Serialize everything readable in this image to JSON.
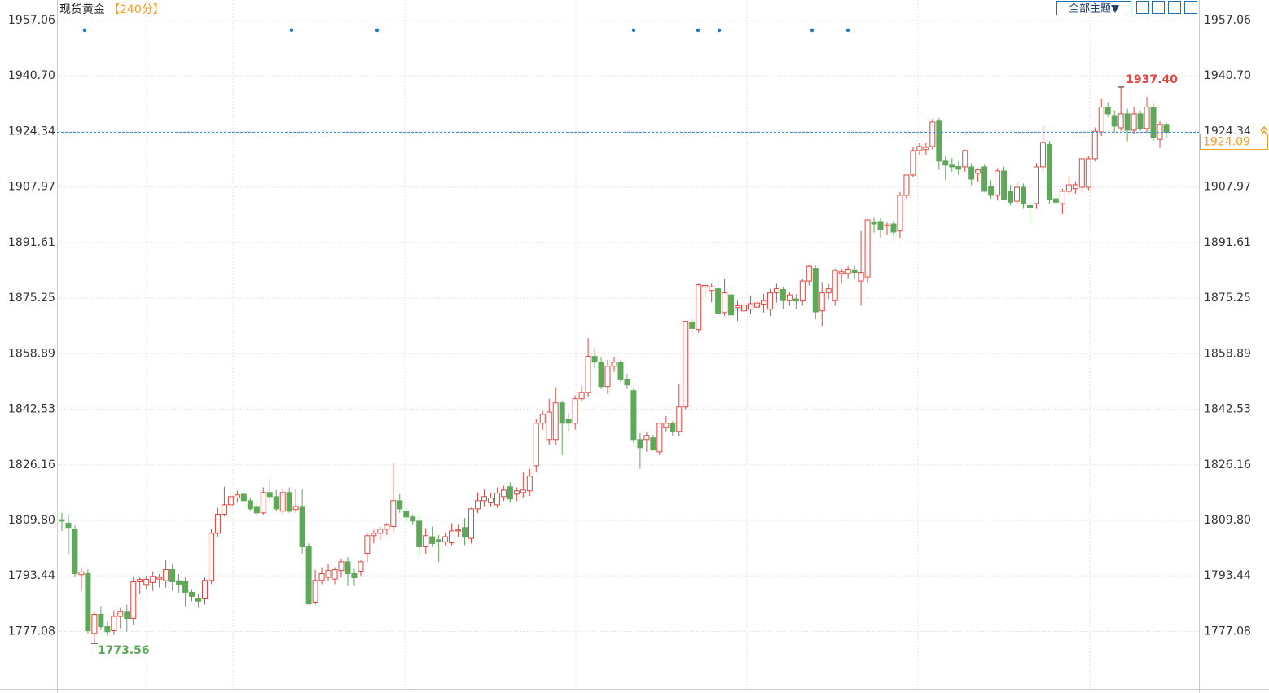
{
  "chart_data": {
    "type": "candlestick",
    "title": "现货黄金",
    "subtitle": "【240分】",
    "toolbar_button": "全部主题▼",
    "up_color": "#e0453f",
    "down_color": "#5ea85a",
    "last_color": "#f39c1f",
    "grid": true,
    "ylim": [
      1760.4,
      1963.05
    ],
    "yticks": [
      1957.06,
      {
        "value": 1940.7,
        "label": "1940.70"
      },
      1924.34,
      1907.97,
      1891.61,
      1875.25,
      1858.89,
      1842.53,
      1826.16,
      {
        "value": 1809.8,
        "label": "1809.80"
      },
      1793.44,
      1777.08
    ],
    "high_label": {
      "value": 1937.4,
      "label": "1937.40"
    },
    "low_label": 1773.56,
    "last_price": 1924.09,
    "open": [
      1810.0,
      1809.0,
      1807.2,
      1793.8,
      1794.1,
      1776.5,
      1782.1,
      1778.5,
      1777.3,
      1781.5,
      1783.0,
      1780.9,
      1791.7,
      1790.9,
      1791.5,
      1792.5,
      1792.0,
      1795.3,
      1792.0,
      1791.7,
      1788.6,
      1786.9,
      1786.9,
      1792.1,
      1806.0,
      1811.6,
      1814.4,
      1816.4,
      1817.5,
      1815.6,
      1813.9,
      1812.0,
      1818.0,
      1816.8,
      1812.5,
      1818.0,
      1813.0,
      1813.9,
      1802.0,
      1785.7,
      1792.1,
      1793.0,
      1792.5,
      1795.0,
      1797.6,
      1794.1,
      1794.8,
      1800.1,
      1805.3,
      1806.0,
      1807.2,
      1808.0,
      1815.6,
      1812.5,
      1810.8,
      1809.6,
      1802.0,
      1805.0,
      1804.1,
      1803.5,
      1803.2,
      1806.7,
      1807.7,
      1804.5,
      1813.2,
      1815.6,
      1815.0,
      1814.4,
      1816.8,
      1819.7,
      1817.5,
      1818.0,
      1818.5,
      1825.9,
      1838.4,
      1833.6,
      1833.6,
      1844.4,
      1839.6,
      1838.4,
      1845.6,
      1847.5,
      1858.1,
      1856.4,
      1849.2,
      1855.2,
      1856.4,
      1851.2,
      1848.0,
      1833.6,
      1833.6,
      1834.1,
      1830.0,
      1837.2,
      1838.4,
      1836.0,
      1843.2,
      1868.2,
      1866.0,
      1878.5,
      1877.5,
      1878.0,
      1871.0,
      1876.2,
      1872.5,
      1871.5,
      1872.0,
      1872.6,
      1873.5,
      1872.0,
      1876.8,
      1877.8,
      1874.5,
      1875.0,
      1874.4,
      1880.3,
      1884.0,
      1871.5,
      1876.8,
      1874.5,
      1882.5,
      1882.5,
      1883.6,
      1880.3,
      1881.5,
      1897.5,
      1897.6,
      1896.5,
      1897.1,
      1895.0,
      1905.5,
      1911.5,
      1918.7,
      1919.0,
      1919.9,
      1927.6,
      1915.6,
      1914.4,
      1914.0,
      1913.9,
      1913.9,
      1912.0,
      1913.9,
      1908.0,
      1905.5,
      1912.7,
      1906.7,
      1903.8,
      1907.9,
      1902.5,
      1903.1,
      1913.9,
      1920.5,
      1904.5,
      1903.1,
      1906.7,
      1907.5,
      1907.9,
      1907.9,
      1916.3,
      1924.2,
      1931.5,
      1929.0,
      1925.4,
      1929.5,
      1924.7,
      1929.5,
      1925.2,
      1931.5,
      1922.0,
      1926.4
    ],
    "high": [
      1812.0,
      1811.6,
      1808.4,
      1796.0,
      1795.3,
      1783.0,
      1784.5,
      1780.0,
      1783.3,
      1784.0,
      1785.0,
      1793.3,
      1793.0,
      1793.5,
      1794.8,
      1794.0,
      1798.0,
      1797.0,
      1794.0,
      1793.0,
      1789.5,
      1788.0,
      1793.0,
      1807.2,
      1813.5,
      1819.7,
      1818.0,
      1818.5,
      1818.7,
      1816.5,
      1815.0,
      1819.5,
      1822.0,
      1818.7,
      1819.2,
      1819.5,
      1819.0,
      1819.0,
      1803.0,
      1795.3,
      1796.0,
      1797.0,
      1796.0,
      1798.5,
      1799.0,
      1795.5,
      1798.0,
      1806.0,
      1807.0,
      1808.0,
      1809.0,
      1826.7,
      1817.5,
      1814.0,
      1811.5,
      1811.0,
      1807.5,
      1808.0,
      1805.5,
      1806.0,
      1809.0,
      1808.5,
      1810.5,
      1813.5,
      1818.0,
      1819.0,
      1818.0,
      1819.5,
      1820.0,
      1821.0,
      1819.5,
      1824.0,
      1825.0,
      1839.6,
      1842.0,
      1845.6,
      1849.0,
      1845.0,
      1841.5,
      1846.5,
      1849.5,
      1863.5,
      1860.5,
      1858.0,
      1857.0,
      1858.0,
      1857.0,
      1853.0,
      1849.0,
      1835.5,
      1836.0,
      1835.0,
      1838.5,
      1840.5,
      1839.0,
      1850.0,
      1868.5,
      1869.5,
      1879.5,
      1880.0,
      1879.5,
      1881.0,
      1881.0,
      1878.5,
      1874.5,
      1874.5,
      1876.0,
      1875.0,
      1876.5,
      1878.0,
      1879.5,
      1878.5,
      1877.0,
      1876.5,
      1881.0,
      1885.0,
      1884.8,
      1880.0,
      1879.5,
      1884.0,
      1884.0,
      1884.6,
      1885.0,
      1895.0,
      1898.5,
      1899.0,
      1898.8,
      1897.5,
      1898.0,
      1906.5,
      1911.5,
      1919.9,
      1921.0,
      1921.0,
      1928.0,
      1928.3,
      1917.0,
      1916.5,
      1915.5,
      1919.0,
      1915.0,
      1913.5,
      1914.5,
      1910.0,
      1913.5,
      1914.0,
      1908.5,
      1909.5,
      1909.0,
      1903.5,
      1915.0,
      1926.0,
      1921.5,
      1906.0,
      1907.5,
      1911.0,
      1909.5,
      1916.5,
      1917.0,
      1925.5,
      1934.0,
      1933.0,
      1930.5,
      1937.4,
      1931.0,
      1931.5,
      1930.5,
      1934.5,
      1932.5,
      1927.5,
      1927.0
    ],
    "low": [
      1806.7,
      1800.0,
      1793.3,
      1789.0,
      1776.5,
      1773.56,
      1777.5,
      1775.8,
      1776.1,
      1778.0,
      1777.0,
      1779.0,
      1788.0,
      1789.5,
      1789.0,
      1790.0,
      1790.0,
      1789.0,
      1788.5,
      1784.5,
      1786.0,
      1784.0,
      1785.0,
      1791.0,
      1805.0,
      1811.0,
      1813.5,
      1815.0,
      1815.6,
      1812.5,
      1811.0,
      1811.5,
      1815.5,
      1812.5,
      1811.8,
      1812.0,
      1812.0,
      1800.0,
      1785.0,
      1785.0,
      1791.0,
      1792.0,
      1791.0,
      1793.0,
      1790.5,
      1790.5,
      1793.5,
      1797.5,
      1803.0,
      1804.0,
      1805.5,
      1806.5,
      1812.0,
      1809.5,
      1808.5,
      1799.5,
      1800.0,
      1802.0,
      1797.5,
      1802.5,
      1802.5,
      1805.0,
      1802.5,
      1803.0,
      1812.0,
      1814.0,
      1814.0,
      1813.5,
      1815.5,
      1815.0,
      1815.5,
      1816.5,
      1817.0,
      1824.0,
      1836.5,
      1832.0,
      1832.0,
      1829.0,
      1836.0,
      1836.5,
      1845.0,
      1846.0,
      1854.5,
      1848.5,
      1847.0,
      1853.5,
      1850.5,
      1848.5,
      1832.5,
      1825.0,
      1830.0,
      1830.5,
      1829.0,
      1836.0,
      1834.5,
      1834.5,
      1842.5,
      1864.0,
      1865.0,
      1875.5,
      1874.0,
      1870.0,
      1870.0,
      1870.5,
      1868.5,
      1868.0,
      1870.5,
      1869.0,
      1871.0,
      1870.0,
      1874.0,
      1872.0,
      1873.0,
      1872.0,
      1873.0,
      1879.0,
      1869.0,
      1867.0,
      1875.0,
      1873.0,
      1879.5,
      1881.0,
      1881.0,
      1873.0,
      1880.0,
      1894.5,
      1893.0,
      1894.0,
      1893.5,
      1893.0,
      1904.5,
      1911.0,
      1917.5,
      1917.5,
      1919.0,
      1913.0,
      1910.0,
      1912.5,
      1911.5,
      1912.5,
      1908.5,
      1909.5,
      1906.5,
      1904.5,
      1904.0,
      1904.5,
      1902.5,
      1903.0,
      1901.5,
      1897.5,
      1901.5,
      1912.5,
      1903.0,
      1902.5,
      1900.0,
      1905.5,
      1906.0,
      1906.5,
      1907.0,
      1915.5,
      1923.0,
      1928.5,
      1924.0,
      1924.5,
      1921.5,
      1923.5,
      1924.5,
      1924.0,
      1921.5,
      1919.5,
      1922.5
    ],
    "close": [
      1809.6,
      1807.7,
      1794.1,
      1794.6,
      1777.3,
      1782.1,
      1778.5,
      1777.0,
      1781.5,
      1783.0,
      1780.9,
      1791.7,
      1792.4,
      1792.4,
      1793.3,
      1793.0,
      1795.3,
      1791.7,
      1791.0,
      1788.6,
      1787.4,
      1786.0,
      1792.1,
      1806.0,
      1811.6,
      1814.4,
      1816.8,
      1817.3,
      1815.6,
      1813.2,
      1812.0,
      1818.0,
      1816.8,
      1813.2,
      1818.0,
      1812.5,
      1813.9,
      1802.0,
      1785.2,
      1792.1,
      1794.1,
      1795.0,
      1795.3,
      1797.6,
      1794.1,
      1792.9,
      1797.6,
      1805.3,
      1806.0,
      1807.2,
      1808.4,
      1815.6,
      1813.2,
      1810.8,
      1809.6,
      1802.0,
      1805.3,
      1803.0,
      1803.5,
      1805.0,
      1806.7,
      1807.0,
      1804.9,
      1813.2,
      1815.6,
      1816.8,
      1816.4,
      1817.8,
      1818.7,
      1816.1,
      1818.5,
      1818.7,
      1822.8,
      1838.4,
      1841.0,
      1841.7,
      1844.4,
      1838.4,
      1838.4,
      1845.6,
      1847.5,
      1858.1,
      1856.4,
      1849.2,
      1855.2,
      1856.4,
      1851.2,
      1849.7,
      1833.6,
      1831.2,
      1834.8,
      1830.5,
      1838.4,
      1838.4,
      1836.0,
      1843.2,
      1868.4,
      1866.3,
      1879.2,
      1879.0,
      1878.6,
      1870.8,
      1876.8,
      1870.3,
      1873.0,
      1873.2,
      1873.6,
      1873.8,
      1874.5,
      1876.8,
      1878.0,
      1874.5,
      1876.2,
      1874.4,
      1880.3,
      1884.6,
      1871.2,
      1876.8,
      1878.0,
      1883.4,
      1883.0,
      1883.8,
      1882.8,
      1882.8,
      1898.3,
      1897.1,
      1895.4,
      1896.8,
      1894.7,
      1905.5,
      1911.5,
      1918.7,
      1919.9,
      1919.6,
      1927.1,
      1915.6,
      1914.4,
      1913.9,
      1913.2,
      1918.7,
      1910.3,
      1913.0,
      1906.7,
      1905.5,
      1912.7,
      1904.3,
      1903.5,
      1907.9,
      1903.1,
      1901.9,
      1913.9,
      1921.1,
      1904.3,
      1903.5,
      1906.7,
      1908.6,
      1908.6,
      1916.3,
      1916.3,
      1924.4,
      1931.5,
      1929.5,
      1925.9,
      1929.5,
      1924.7,
      1929.5,
      1925.2,
      1931.5,
      1922.5,
      1926.4,
      1924.09
    ]
  }
}
